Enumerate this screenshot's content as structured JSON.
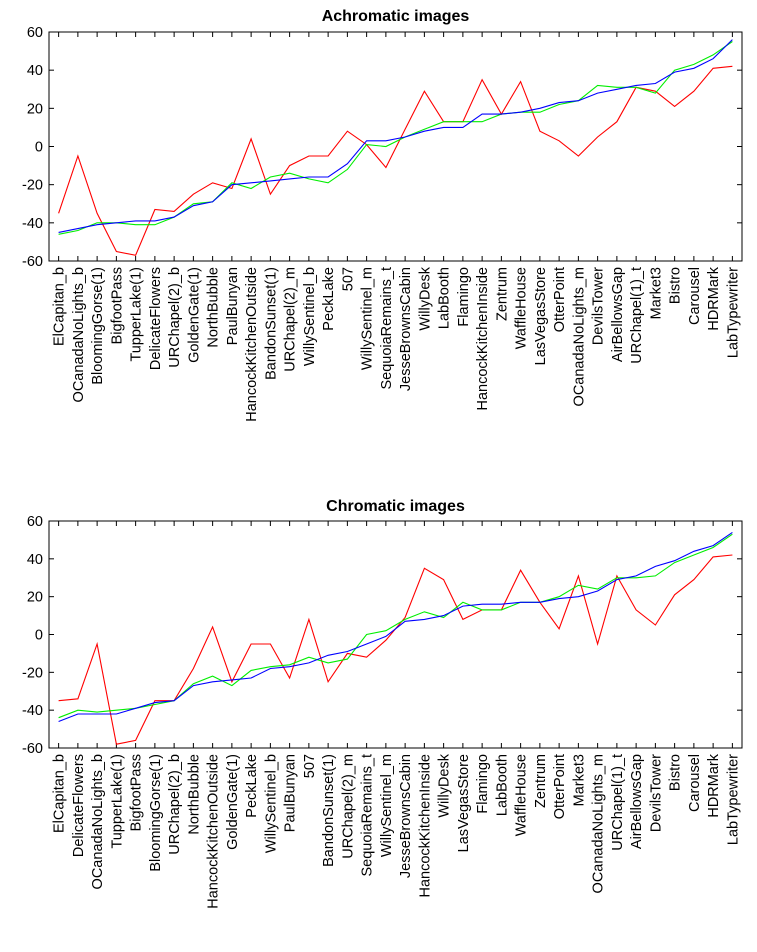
{
  "chart_data": [
    {
      "type": "line",
      "title": "Achromatic images",
      "categories": [
        "ElCapitan_b",
        "OCanadaNoLights_b",
        "BloomingGorse(1)",
        "BigfootPass",
        "TupperLake(1)",
        "DelicateFlowers",
        "URChapel(2)_b",
        "GoldenGate(1)",
        "NorthBubble",
        "PaulBunyan",
        "HancockKitchenOutside",
        "BandonSunset(1)",
        "URChapel(2)_m",
        "WillySentinel_b",
        "PeckLake",
        "507",
        "WillySentinel_m",
        "SequoiaRemains_t",
        "JesseBrownsCabin",
        "WillyDesk",
        "LabBooth",
        "Flamingo",
        "HancockKitchenInside",
        "Zentrum",
        "WaffleHouse",
        "LasVegasStore",
        "OtterPoint",
        "OCanadaNoLights_m",
        "DevilsTower",
        "AirBellowsGap",
        "URChapel(1)_t",
        "Market3",
        "Bistro",
        "Carousel",
        "HDRMark",
        "LabTypewriter"
      ],
      "ylim": [
        -60,
        60
      ],
      "yticks": [
        -60,
        -40,
        -20,
        0,
        20,
        40,
        60
      ],
      "series": [
        {
          "color": "#ff0000",
          "values": [
            -35,
            -5,
            -35,
            -55,
            -57,
            -33,
            -34,
            -25,
            -19,
            -22,
            4,
            -25,
            -10,
            -5,
            -5,
            8,
            1,
            -11,
            9,
            29,
            13,
            13,
            35,
            17,
            34,
            8,
            3,
            -5,
            5,
            13,
            31,
            29,
            21,
            29,
            41,
            42
          ]
        },
        {
          "color": "#00ee00",
          "values": [
            -46,
            -44,
            -40,
            -40,
            -41,
            -41,
            -37,
            -30,
            -29,
            -19,
            -22,
            -16,
            -14,
            -17,
            -19,
            -12,
            1,
            0,
            5,
            9,
            13,
            13,
            13,
            17,
            18,
            18,
            22,
            24,
            32,
            31,
            31,
            28,
            40,
            43,
            48,
            55
          ]
        },
        {
          "color": "#0000ff",
          "values": [
            -45,
            -43,
            -41,
            -40,
            -39,
            -39,
            -37,
            -31,
            -29,
            -20,
            -19,
            -18,
            -17,
            -16,
            -16,
            -9,
            3,
            3,
            5,
            8,
            10,
            10,
            17,
            17,
            18,
            20,
            23,
            24,
            28,
            30,
            32,
            33,
            39,
            41,
            46,
            56
          ]
        }
      ]
    },
    {
      "type": "line",
      "title": "Chromatic images",
      "categories": [
        "ElCapitan_b",
        "DelicateFlowers",
        "OCanadaNoLights_b",
        "TupperLake(1)",
        "BigfootPass",
        "BloomingGorse(1)",
        "URChapel(2)_b",
        "NorthBubble",
        "HancockKitchenOutside",
        "GoldenGate(1)",
        "PeckLake",
        "WillySentinel_b",
        "PaulBunyan",
        "507",
        "BandonSunset(1)",
        "URChapel(2)_m",
        "SequoiaRemains_t",
        "WillySentinel_m",
        "JesseBrownsCabin",
        "HancockKitchenInside",
        "WillyDesk",
        "LasVegasStore",
        "Flamingo",
        "LabBooth",
        "WaffleHouse",
        "Zentrum",
        "OtterPoint",
        "Market3",
        "OCanadaNoLights_m",
        "URChapel(1)_t",
        "AirBellowsGap",
        "DevilsTower",
        "Bistro",
        "Carousel",
        "HDRMark",
        "LabTypewriter"
      ],
      "ylim": [
        -60,
        60
      ],
      "yticks": [
        -60,
        -40,
        -20,
        0,
        20,
        40,
        60
      ],
      "series": [
        {
          "color": "#ff0000",
          "values": [
            -35,
            -34,
            -5,
            -58,
            -56,
            -35,
            -35,
            -18,
            4,
            -25,
            -5,
            -5,
            -23,
            8,
            -25,
            -10,
            -12,
            -3,
            9,
            35,
            29,
            8,
            13,
            13,
            34,
            17,
            3,
            31,
            -5,
            31,
            13,
            5,
            21,
            29,
            41,
            42
          ]
        },
        {
          "color": "#00ee00",
          "values": [
            -44,
            -40,
            -41,
            -40,
            -39,
            -37,
            -35,
            -26,
            -22,
            -27,
            -19,
            -17,
            -16,
            -12,
            -15,
            -13,
            0,
            2,
            8,
            12,
            9,
            17,
            13,
            13,
            17,
            17,
            20,
            26,
            24,
            30,
            30,
            31,
            38,
            42,
            46,
            53
          ]
        },
        {
          "color": "#0000ff",
          "values": [
            -46,
            -42,
            -42,
            -42,
            -39,
            -36,
            -35,
            -27,
            -25,
            -24,
            -23,
            -18,
            -17,
            -15,
            -11,
            -9,
            -5,
            -1,
            7,
            8,
            10,
            15,
            16,
            16,
            17,
            17,
            19,
            20,
            23,
            29,
            31,
            36,
            39,
            44,
            47,
            54
          ]
        }
      ]
    }
  ]
}
